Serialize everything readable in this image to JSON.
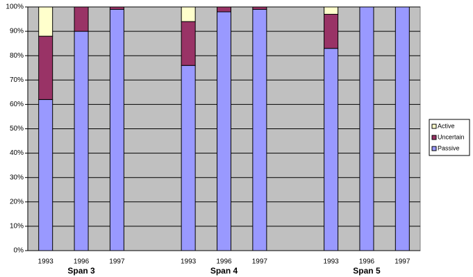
{
  "chart_data": {
    "type": "stacked-bar",
    "categories": [
      "1993",
      "1996",
      "1997",
      null,
      "1993",
      "1996",
      "1997",
      null,
      "1993",
      "1996",
      "1997"
    ],
    "group_labels": [
      null,
      "Span 3",
      null,
      null,
      null,
      "Span 4",
      null,
      null,
      null,
      "Span 5",
      null
    ],
    "series": [
      {
        "name": "Passive",
        "color": "#9999ff",
        "values": [
          62,
          90,
          99,
          null,
          76,
          98,
          99,
          null,
          83,
          100,
          100
        ]
      },
      {
        "name": "Uncertain",
        "color": "#993366",
        "values": [
          26,
          10,
          1,
          null,
          18,
          2,
          1,
          null,
          14,
          0,
          0
        ]
      },
      {
        "name": "Active",
        "color": "#ffffcc",
        "values": [
          12,
          0,
          0,
          null,
          6,
          0,
          0,
          null,
          3,
          0,
          0
        ]
      }
    ],
    "ylim": [
      0,
      100
    ],
    "yticks": [
      {
        "value": 0,
        "label": "0%"
      },
      {
        "value": 10,
        "label": "10%"
      },
      {
        "value": 20,
        "label": "20%"
      },
      {
        "value": 30,
        "label": "30%"
      },
      {
        "value": 40,
        "label": "40%"
      },
      {
        "value": 50,
        "label": "50%"
      },
      {
        "value": 60,
        "label": "60%"
      },
      {
        "value": 70,
        "label": "70%"
      },
      {
        "value": 80,
        "label": "80%"
      },
      {
        "value": 90,
        "label": "90%"
      },
      {
        "value": 100,
        "label": "100%"
      }
    ],
    "grid": true,
    "plot_background": "#c0c0c0",
    "legend": "right"
  }
}
